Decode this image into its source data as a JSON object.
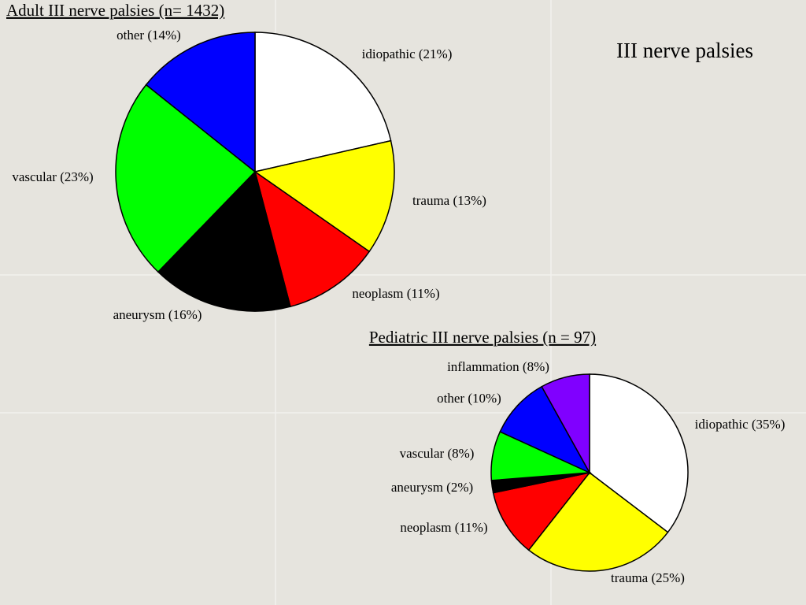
{
  "title": "III nerve palsies",
  "chart_data": [
    {
      "type": "pie",
      "title": "Adult III nerve palsies (n= 1432)",
      "categories": [
        "idiopathic (21%)",
        "trauma (13%)",
        "neoplasm (11%)",
        "aneurysm (16%)",
        "vascular (23%)",
        "other (14%)"
      ],
      "values": [
        21,
        13,
        11,
        16,
        23,
        14
      ],
      "colors": [
        "#ffffff",
        "#ffff00",
        "#ff0000",
        "#000000",
        "#00ff00",
        "#0000ff"
      ]
    },
    {
      "type": "pie",
      "title": "Pediatric III nerve palsies (n = 97)",
      "categories": [
        "idiopathic (35%)",
        "trauma (25%)",
        "neoplasm (11%)",
        "aneurysm (2%)",
        "vascular (8%)",
        "other (10%)",
        "inflammation (8%)"
      ],
      "values": [
        35,
        25,
        11,
        2,
        8,
        10,
        8
      ],
      "colors": [
        "#ffffff",
        "#ffff00",
        "#ff0000",
        "#000000",
        "#00ff00",
        "#0000ff",
        "#8000ff"
      ]
    }
  ]
}
